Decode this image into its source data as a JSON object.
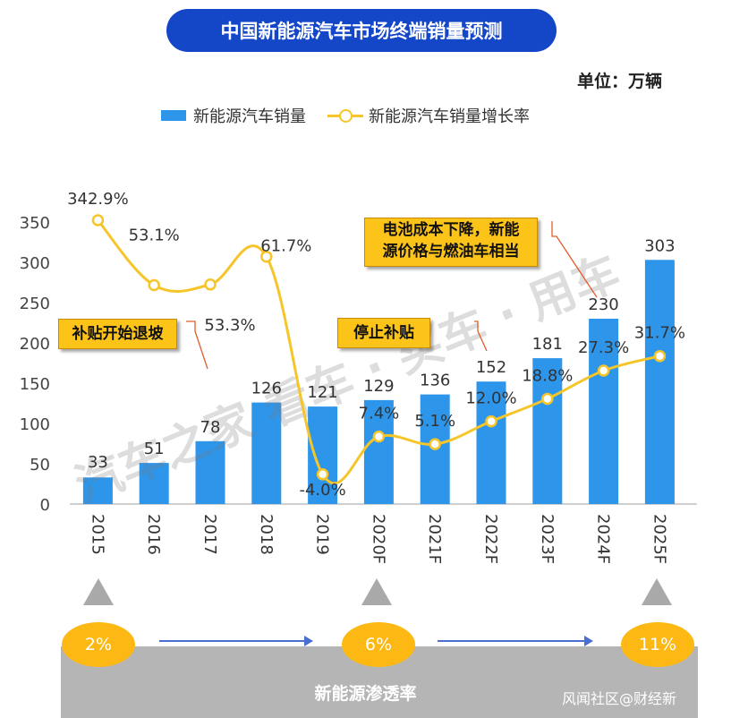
{
  "header": {
    "title": "中国新能源汽车市场终端销量预测",
    "unit": "单位：万辆"
  },
  "legend": {
    "bar_label": "新能源汽车销量",
    "line_label": "新能源汽车销量增长率"
  },
  "callouts": {
    "subsidy_retreat": "补贴开始退坡",
    "subsidy_stop": "停止补贴",
    "battery_line1": "电池成本下降，新能",
    "battery_line2": "源价格与燃油车相当"
  },
  "penetration": {
    "label": "新能源渗透率",
    "values": [
      "2%",
      "6%",
      "11%"
    ]
  },
  "source": "风闻社区@财经新",
  "colors": {
    "bar": "#2e96ea",
    "line": "#f5c52a",
    "title_bg": "#1447c8",
    "callout": "#fcc419"
  },
  "chart_data": {
    "type": "bar",
    "categories": [
      "2015",
      "2016",
      "2017",
      "2018",
      "2019",
      "2020F",
      "2021F",
      "2022F",
      "2023F",
      "2024F",
      "2025F"
    ],
    "series": [
      {
        "name": "新能源汽车销量",
        "type": "bar",
        "values": [
          33,
          51,
          78,
          126,
          121,
          129,
          136,
          152,
          181,
          230,
          303
        ],
        "labels": [
          "33",
          "51",
          "78",
          "126",
          "121",
          "129",
          "136",
          "152",
          "181",
          "230",
          "303"
        ]
      },
      {
        "name": "新能源汽车销量增长率",
        "type": "line",
        "values": [
          342.9,
          53.1,
          53.3,
          61.7,
          -4.0,
          7.4,
          5.1,
          12.0,
          18.8,
          27.3,
          31.7
        ],
        "labels": [
          "342.9%",
          "53.1%",
          "53.3%",
          "61.7%",
          "-4.0%",
          "7.4%",
          "5.1%",
          "12.0%",
          "18.8%",
          "27.3%",
          "31.7%"
        ]
      }
    ],
    "ylim": [
      0,
      350
    ],
    "yticks": [
      "0",
      "50",
      "100",
      "150",
      "200",
      "250",
      "300",
      "350"
    ],
    "grid": false,
    "legend_position": "top"
  }
}
